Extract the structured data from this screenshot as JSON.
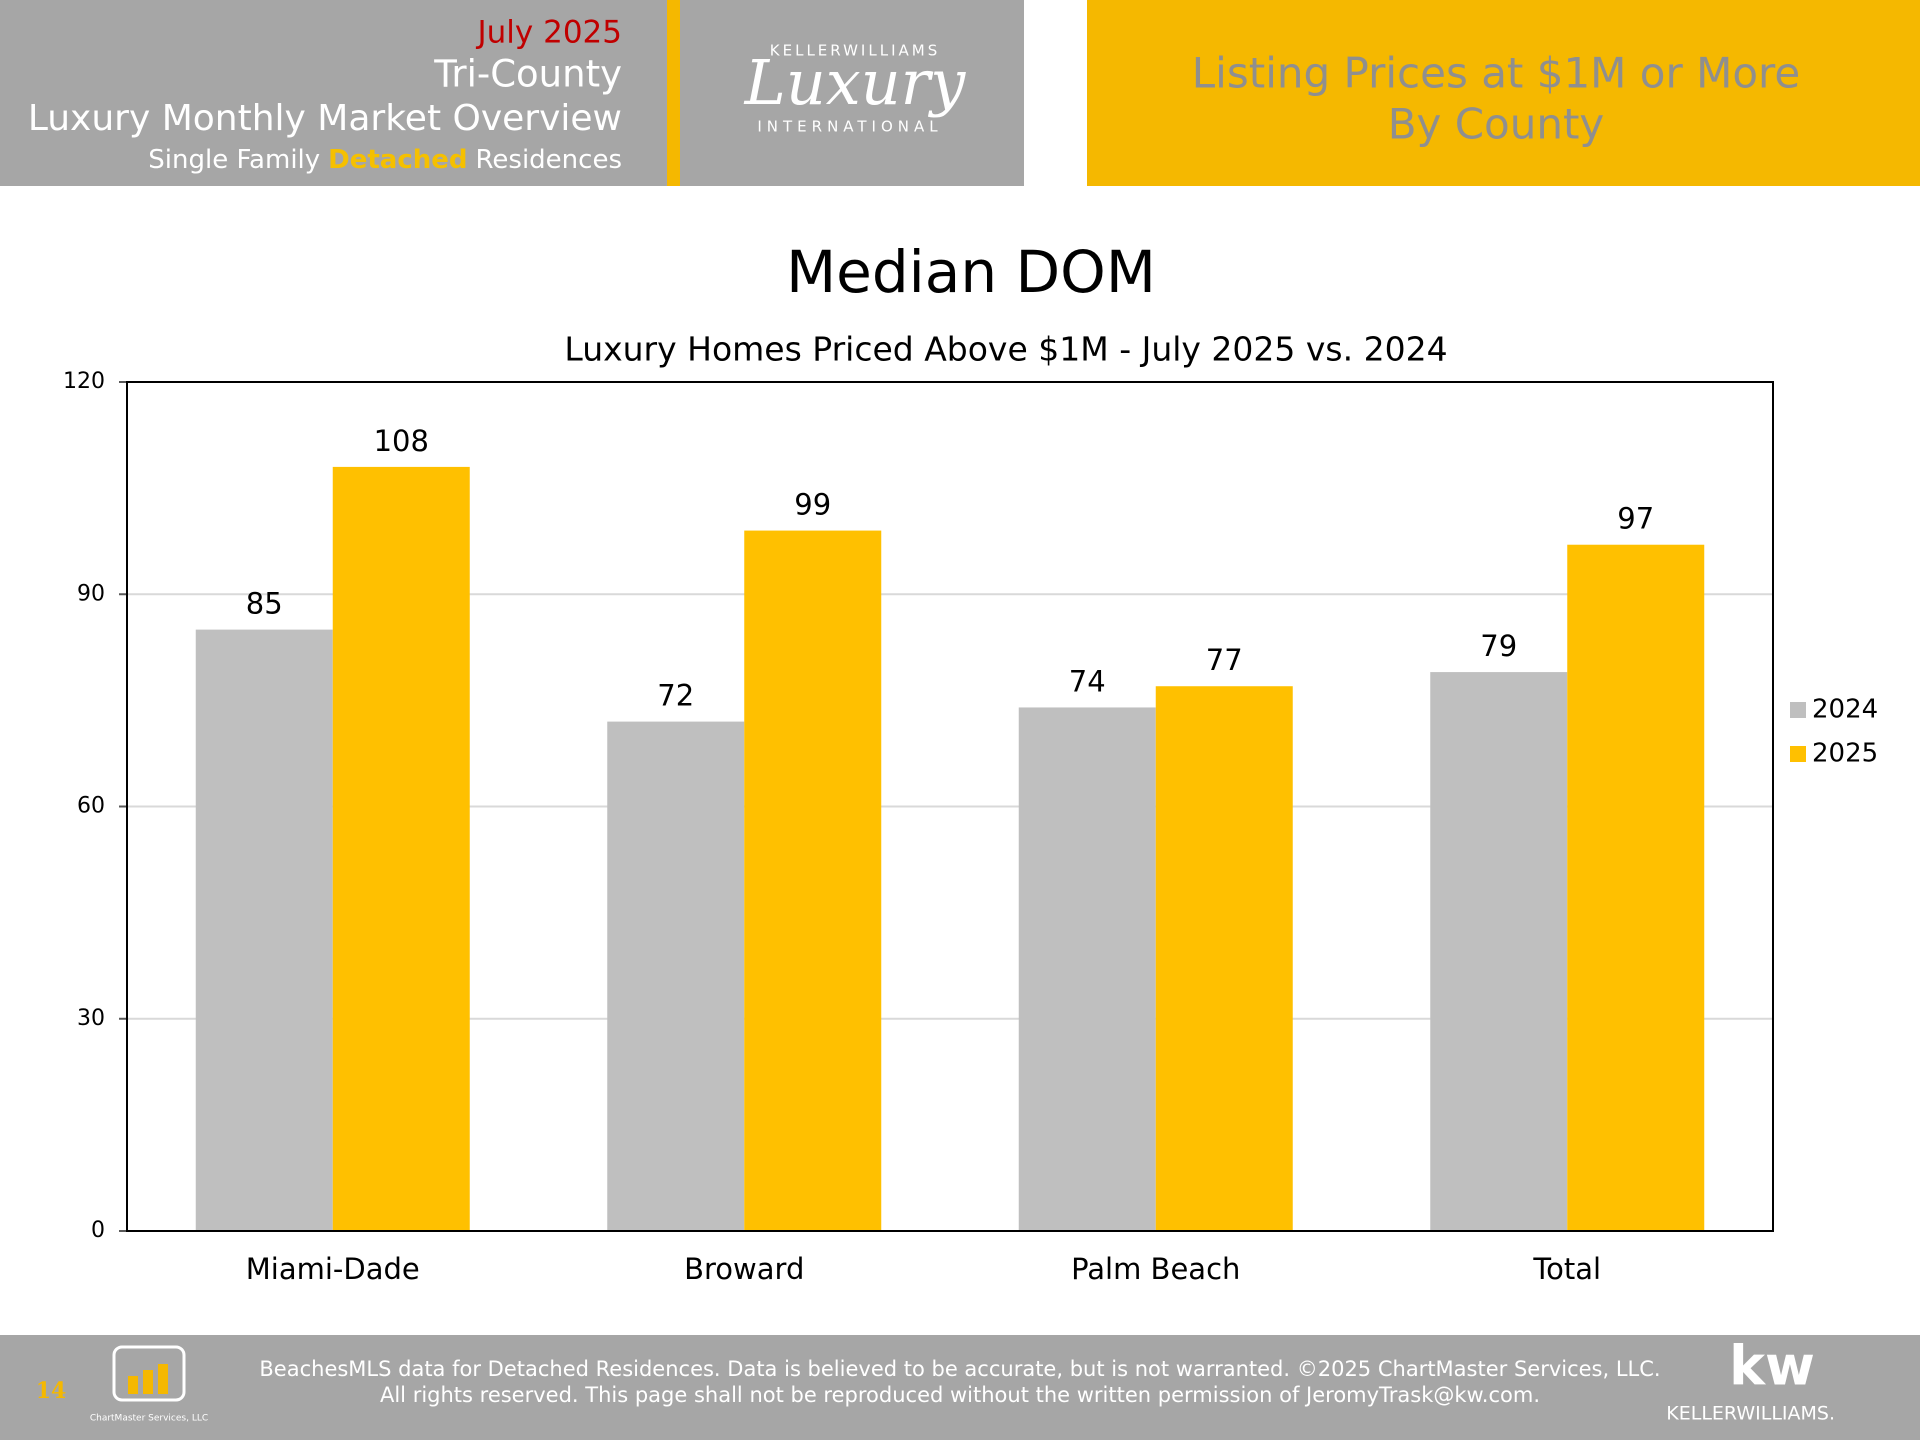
{
  "header": {
    "date": "July 2025",
    "region": "Tri-County",
    "title": "Luxury Monthly Market Overview",
    "subtitle_parts": [
      "Single Family",
      "Detached",
      "Residences"
    ],
    "logo": {
      "top": "KELLERWILLIAMS",
      "script": "Luxury",
      "bottom": "INTERNATIONAL"
    },
    "banner": [
      "Listing Prices at $1M or More",
      "By County"
    ]
  },
  "chart_data": {
    "type": "bar",
    "title": "Median DOM",
    "subtitle": "Luxury Homes Priced Above $1M - July 2025 vs. 2024",
    "categories": [
      "Miami-Dade",
      "Broward",
      "Palm Beach",
      "Total"
    ],
    "series": [
      {
        "name": "2024",
        "color": "#bfbfbf",
        "values": [
          85,
          72,
          74,
          79
        ]
      },
      {
        "name": "2025",
        "color": "#ffc000",
        "values": [
          108,
          99,
          77,
          97
        ]
      }
    ],
    "ylim": [
      0,
      120
    ],
    "yticks": [
      0,
      30,
      60,
      90,
      120
    ],
    "grid": true,
    "legend": "right"
  },
  "footer": {
    "page": "14",
    "logo": "ChartMaster Services, LLC",
    "lines": [
      "BeachesMLS data for Detached Residences.  Data is believed to be accurate, but is not warranted.   ©2025  ChartMaster Services, LLC.",
      "All rights reserved. This page shall not be reproduced without the written permission of JeromyTrask@kw.com."
    ],
    "brand": [
      "kw",
      "KELLERWILLIAMS."
    ]
  }
}
